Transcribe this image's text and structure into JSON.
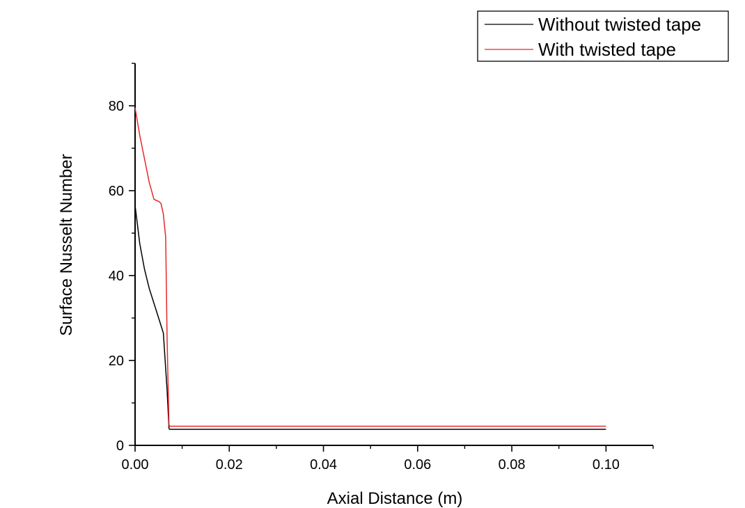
{
  "chart_data": {
    "type": "line",
    "title": "",
    "xlabel": "Axial Distance (m)",
    "ylabel": "Surface Nusselt Number",
    "xlim": [
      0,
      0.11
    ],
    "ylim": [
      0,
      90
    ],
    "x_ticks": [
      0.0,
      0.02,
      0.04,
      0.06,
      0.08,
      0.1
    ],
    "x_tick_labels": [
      "0.00",
      "0.02",
      "0.04",
      "0.06",
      "0.08",
      "0.10"
    ],
    "x_minor_ticks": [
      0.01,
      0.03,
      0.05,
      0.07,
      0.09,
      0.11
    ],
    "y_ticks": [
      0,
      20,
      40,
      60,
      80
    ],
    "y_tick_labels": [
      "0",
      "20",
      "40",
      "60",
      "80"
    ],
    "y_minor_ticks": [
      10,
      30,
      50,
      70,
      90
    ],
    "grid": false,
    "legend_position": "top-right",
    "series": [
      {
        "name": "Without twisted tape",
        "color": "#000000",
        "x": [
          0,
          0.001,
          0.002,
          0.003,
          0.004,
          0.005,
          0.006,
          0.0068,
          0.0072,
          0.0073,
          0.1
        ],
        "y": [
          56.5,
          47.5,
          41.5,
          37,
          33.5,
          30,
          26.5,
          13,
          4,
          3.8,
          3.8
        ]
      },
      {
        "name": "With twisted tape",
        "color": "#e8262a",
        "x": [
          0,
          0.001,
          0.002,
          0.003,
          0.004,
          0.0045,
          0.005,
          0.0055,
          0.006,
          0.0065,
          0.0068,
          0.0072,
          0.0073,
          0.1
        ],
        "y": [
          79.5,
          73,
          67.5,
          62,
          58,
          57.7,
          57.5,
          57,
          54.5,
          49,
          25,
          5,
          4.5,
          4.5
        ]
      }
    ]
  }
}
